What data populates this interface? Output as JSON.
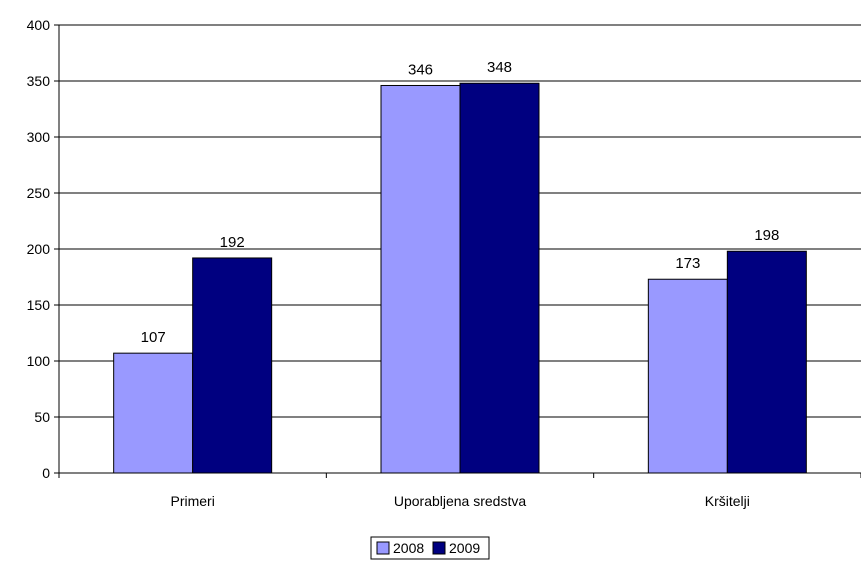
{
  "chart_data": {
    "type": "bar",
    "categories": [
      "Primeri",
      "Uporabljena sredstva",
      "Kršitelji"
    ],
    "series": [
      {
        "name": "2008",
        "values": [
          107,
          346,
          173
        ],
        "color": "#9999FF"
      },
      {
        "name": "2009",
        "values": [
          192,
          348,
          198
        ],
        "color": "#000080"
      }
    ],
    "title": "",
    "xlabel": "",
    "ylabel": "",
    "ylim": [
      0,
      400
    ],
    "yticks": [
      0,
      50,
      100,
      150,
      200,
      250,
      300,
      350,
      400
    ],
    "grid": true,
    "legend": "bottom",
    "data_labels": true
  }
}
